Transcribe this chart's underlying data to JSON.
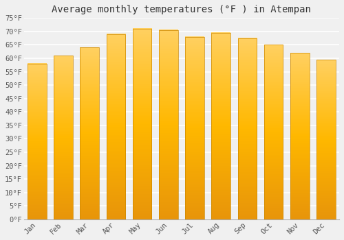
{
  "title": "Average monthly temperatures (°F ) in Atempan",
  "months": [
    "Jan",
    "Feb",
    "Mar",
    "Apr",
    "May",
    "Jun",
    "Jul",
    "Aug",
    "Sep",
    "Oct",
    "Nov",
    "Dec"
  ],
  "values": [
    58,
    61,
    64,
    69,
    71,
    70.5,
    68,
    69.5,
    67.5,
    65,
    62,
    59.5
  ],
  "ylim": [
    0,
    75
  ],
  "yticks": [
    0,
    5,
    10,
    15,
    20,
    25,
    30,
    35,
    40,
    45,
    50,
    55,
    60,
    65,
    70,
    75
  ],
  "ytick_labels": [
    "0°F",
    "5°F",
    "10°F",
    "15°F",
    "20°F",
    "25°F",
    "30°F",
    "35°F",
    "40°F",
    "45°F",
    "50°F",
    "55°F",
    "60°F",
    "65°F",
    "70°F",
    "75°F"
  ],
  "background_color": "#f0f0f0",
  "grid_color": "#ffffff",
  "title_fontsize": 10,
  "tick_fontsize": 7.5,
  "font_family": "monospace",
  "bar_width": 0.72,
  "bar_bottom_color": "#E8950A",
  "bar_mid_color": "#FFB800",
  "bar_top_color": "#FFD060",
  "bar_edge_color": "#CC8800"
}
